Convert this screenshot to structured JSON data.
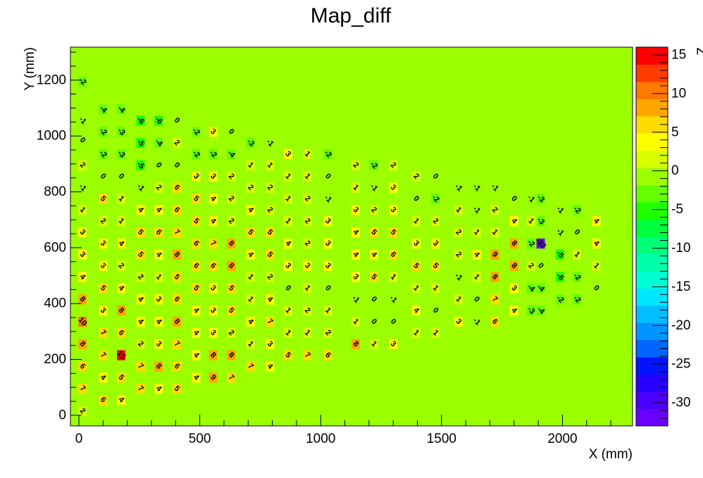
{
  "chart_data": {
    "type": "heatmap",
    "title": "Map_diff",
    "xlabel": "X (mm)",
    "ylabel": "Y (mm)",
    "zlabel": "Z",
    "xlim": [
      -35,
      2290
    ],
    "ylim": [
      -38,
      1318
    ],
    "zlim": [
      -33,
      16
    ],
    "background_value": 0,
    "x_ticks": [
      0,
      500,
      1000,
      1500,
      2000
    ],
    "y_ticks": [
      0,
      200,
      400,
      600,
      800,
      1000,
      1200
    ],
    "z_ticks": [
      15,
      10,
      5,
      0,
      -5,
      -10,
      -15,
      -20,
      -25,
      -30
    ],
    "palette": [
      "#6a00ff",
      "#4b00ff",
      "#2800ff",
      "#0014ff",
      "#0064ff",
      "#0096ff",
      "#00beff",
      "#00e6ff",
      "#00ffd2",
      "#00ffaa",
      "#00ff78",
      "#00ff3c",
      "#1eff00",
      "#64ff00",
      "#9bff00",
      "#d7ff00",
      "#ffff00",
      "#ffdc00",
      "#ffa500",
      "#ff7800",
      "#ff3c00",
      "#ff0000"
    ],
    "cell_size": [
      35,
      36
    ],
    "cells": [
      [
        15,
        1195,
        -2
      ],
      [
        100,
        1095,
        -4
      ],
      [
        175,
        1095,
        -4
      ],
      [
        255,
        1055,
        -6
      ],
      [
        330,
        1055,
        -6
      ],
      [
        405,
        1055,
        0
      ],
      [
        485,
        1015,
        -2
      ],
      [
        555,
        1015,
        3
      ],
      [
        630,
        1015,
        0
      ],
      [
        15,
        1055,
        -1
      ],
      [
        100,
        1015,
        -2
      ],
      [
        175,
        1015,
        -3
      ],
      [
        255,
        975,
        -5
      ],
      [
        330,
        975,
        -4
      ],
      [
        405,
        975,
        2
      ],
      [
        485,
        935,
        -2
      ],
      [
        555,
        935,
        -2
      ],
      [
        630,
        935,
        -4
      ],
      [
        710,
        975,
        -3
      ],
      [
        790,
        975,
        -1
      ],
      [
        865,
        935,
        3
      ],
      [
        945,
        935,
        1
      ],
      [
        1030,
        935,
        -2
      ],
      [
        15,
        985,
        0
      ],
      [
        100,
        935,
        -2
      ],
      [
        175,
        935,
        -3
      ],
      [
        255,
        895,
        -5
      ],
      [
        330,
        895,
        0
      ],
      [
        405,
        895,
        0
      ],
      [
        485,
        855,
        3
      ],
      [
        555,
        855,
        3
      ],
      [
        630,
        855,
        2
      ],
      [
        710,
        895,
        1
      ],
      [
        790,
        895,
        1
      ],
      [
        865,
        855,
        1
      ],
      [
        945,
        855,
        1
      ],
      [
        1030,
        855,
        0
      ],
      [
        1145,
        895,
        2
      ],
      [
        1220,
        895,
        -2
      ],
      [
        1300,
        895,
        2
      ],
      [
        1395,
        855,
        2
      ],
      [
        1475,
        855,
        0
      ],
      [
        15,
        895,
        2
      ],
      [
        100,
        855,
        0
      ],
      [
        175,
        855,
        0
      ],
      [
        255,
        815,
        -1
      ],
      [
        330,
        815,
        2
      ],
      [
        405,
        815,
        6
      ],
      [
        485,
        775,
        5
      ],
      [
        555,
        775,
        4
      ],
      [
        630,
        775,
        2
      ],
      [
        710,
        815,
        2
      ],
      [
        790,
        815,
        2
      ],
      [
        865,
        775,
        1
      ],
      [
        945,
        775,
        2
      ],
      [
        1030,
        775,
        -1
      ],
      [
        1145,
        815,
        1
      ],
      [
        1220,
        815,
        -1
      ],
      [
        1300,
        815,
        3
      ],
      [
        1395,
        775,
        0
      ],
      [
        1475,
        775,
        -2
      ],
      [
        1570,
        815,
        -1
      ],
      [
        1645,
        815,
        -1
      ],
      [
        1720,
        815,
        -1
      ],
      [
        15,
        815,
        -1
      ],
      [
        100,
        775,
        5
      ],
      [
        175,
        775,
        1
      ],
      [
        255,
        735,
        4
      ],
      [
        330,
        735,
        4
      ],
      [
        405,
        735,
        6
      ],
      [
        485,
        695,
        5
      ],
      [
        555,
        695,
        4
      ],
      [
        630,
        695,
        2
      ],
      [
        710,
        735,
        4
      ],
      [
        790,
        735,
        2
      ],
      [
        865,
        695,
        1
      ],
      [
        945,
        695,
        2
      ],
      [
        1030,
        695,
        3
      ],
      [
        1145,
        735,
        3
      ],
      [
        1220,
        735,
        2
      ],
      [
        1300,
        735,
        3
      ],
      [
        1395,
        695,
        1
      ],
      [
        1475,
        695,
        2
      ],
      [
        1570,
        735,
        1
      ],
      [
        1645,
        735,
        -1
      ],
      [
        1720,
        735,
        2
      ],
      [
        1800,
        775,
        0
      ],
      [
        1870,
        775,
        -1
      ],
      [
        1910,
        775,
        -3
      ],
      [
        15,
        735,
        1
      ],
      [
        100,
        695,
        2
      ],
      [
        175,
        695,
        1
      ],
      [
        255,
        655,
        5
      ],
      [
        330,
        655,
        6
      ],
      [
        405,
        655,
        7
      ],
      [
        485,
        615,
        6
      ],
      [
        555,
        615,
        7
      ],
      [
        630,
        615,
        8
      ],
      [
        710,
        655,
        5
      ],
      [
        790,
        655,
        5
      ],
      [
        865,
        615,
        4
      ],
      [
        945,
        615,
        2
      ],
      [
        1030,
        615,
        3
      ],
      [
        1145,
        655,
        4
      ],
      [
        1220,
        655,
        5
      ],
      [
        1300,
        655,
        5
      ],
      [
        1395,
        615,
        3
      ],
      [
        1475,
        615,
        3
      ],
      [
        1570,
        655,
        2
      ],
      [
        1645,
        655,
        1
      ],
      [
        1720,
        655,
        1
      ],
      [
        1800,
        695,
        4
      ],
      [
        1870,
        695,
        1
      ],
      [
        1910,
        695,
        -3
      ],
      [
        1990,
        735,
        -1
      ],
      [
        2060,
        735,
        -2
      ],
      [
        15,
        655,
        3
      ],
      [
        100,
        615,
        3
      ],
      [
        175,
        615,
        4
      ],
      [
        255,
        575,
        5
      ],
      [
        330,
        575,
        4
      ],
      [
        405,
        575,
        8
      ],
      [
        485,
        535,
        6
      ],
      [
        555,
        535,
        6
      ],
      [
        630,
        535,
        8
      ],
      [
        710,
        575,
        4
      ],
      [
        790,
        575,
        5
      ],
      [
        865,
        535,
        3
      ],
      [
        945,
        535,
        3
      ],
      [
        1030,
        535,
        3
      ],
      [
        1145,
        575,
        4
      ],
      [
        1220,
        575,
        4
      ],
      [
        1300,
        575,
        6
      ],
      [
        1395,
        535,
        5
      ],
      [
        1475,
        535,
        5
      ],
      [
        1570,
        575,
        2
      ],
      [
        1645,
        575,
        4
      ],
      [
        1720,
        575,
        9
      ],
      [
        1800,
        615,
        8
      ],
      [
        1870,
        615,
        -2
      ],
      [
        1910,
        615,
        -32
      ],
      [
        1990,
        655,
        -1
      ],
      [
        2060,
        655,
        0
      ],
      [
        2140,
        695,
        4
      ],
      [
        15,
        575,
        3
      ],
      [
        100,
        535,
        3
      ],
      [
        175,
        535,
        2
      ],
      [
        255,
        495,
        2
      ],
      [
        330,
        495,
        1
      ],
      [
        405,
        495,
        5
      ],
      [
        485,
        455,
        5
      ],
      [
        555,
        455,
        3
      ],
      [
        630,
        455,
        5
      ],
      [
        710,
        495,
        1
      ],
      [
        790,
        495,
        2
      ],
      [
        865,
        455,
        0
      ],
      [
        945,
        455,
        1
      ],
      [
        1030,
        455,
        0
      ],
      [
        1145,
        495,
        3
      ],
      [
        1220,
        495,
        5
      ],
      [
        1300,
        495,
        1
      ],
      [
        1395,
        455,
        1
      ],
      [
        1475,
        455,
        1
      ],
      [
        1570,
        495,
        -1
      ],
      [
        1645,
        495,
        1
      ],
      [
        1720,
        495,
        8
      ],
      [
        1800,
        535,
        8
      ],
      [
        1870,
        535,
        2
      ],
      [
        1910,
        535,
        0
      ],
      [
        1990,
        575,
        -5
      ],
      [
        2060,
        575,
        1
      ],
      [
        2140,
        615,
        4
      ],
      [
        15,
        495,
        4
      ],
      [
        100,
        455,
        5
      ],
      [
        175,
        455,
        4
      ],
      [
        255,
        415,
        4
      ],
      [
        330,
        415,
        3
      ],
      [
        405,
        415,
        6
      ],
      [
        485,
        375,
        4
      ],
      [
        555,
        375,
        3
      ],
      [
        630,
        375,
        5
      ],
      [
        710,
        415,
        1
      ],
      [
        790,
        415,
        4
      ],
      [
        865,
        375,
        1
      ],
      [
        945,
        375,
        2
      ],
      [
        1030,
        375,
        1
      ],
      [
        1145,
        415,
        -1
      ],
      [
        1220,
        415,
        0
      ],
      [
        1300,
        415,
        -1
      ],
      [
        1395,
        375,
        4
      ],
      [
        1475,
        375,
        0
      ],
      [
        1570,
        415,
        1
      ],
      [
        1645,
        415,
        0
      ],
      [
        1720,
        415,
        7
      ],
      [
        1800,
        455,
        3
      ],
      [
        1870,
        455,
        -4
      ],
      [
        1910,
        455,
        -4
      ],
      [
        1990,
        495,
        -6
      ],
      [
        2060,
        495,
        -2
      ],
      [
        2140,
        535,
        1
      ],
      [
        15,
        415,
        8
      ],
      [
        100,
        375,
        3
      ],
      [
        175,
        375,
        8
      ],
      [
        255,
        335,
        4
      ],
      [
        330,
        335,
        4
      ],
      [
        405,
        335,
        8
      ],
      [
        485,
        295,
        4
      ],
      [
        555,
        295,
        3
      ],
      [
        630,
        295,
        2
      ],
      [
        710,
        335,
        4
      ],
      [
        790,
        335,
        7
      ],
      [
        865,
        295,
        1
      ],
      [
        945,
        295,
        1
      ],
      [
        1030,
        295,
        2
      ],
      [
        1145,
        335,
        1
      ],
      [
        1220,
        335,
        0
      ],
      [
        1300,
        335,
        0
      ],
      [
        1395,
        295,
        1
      ],
      [
        1475,
        295,
        1
      ],
      [
        1570,
        335,
        3
      ],
      [
        1645,
        335,
        -1
      ],
      [
        1720,
        335,
        6
      ],
      [
        1800,
        375,
        4
      ],
      [
        1870,
        375,
        -3
      ],
      [
        1910,
        375,
        -4
      ],
      [
        1990,
        415,
        -2
      ],
      [
        2060,
        415,
        -2
      ],
      [
        2140,
        455,
        0
      ],
      [
        15,
        335,
        10
      ],
      [
        100,
        295,
        7
      ],
      [
        175,
        295,
        6
      ],
      [
        255,
        255,
        2
      ],
      [
        330,
        255,
        3
      ],
      [
        405,
        255,
        7
      ],
      [
        485,
        215,
        4
      ],
      [
        555,
        215,
        8
      ],
      [
        630,
        215,
        8
      ],
      [
        710,
        255,
        1
      ],
      [
        790,
        255,
        3
      ],
      [
        865,
        215,
        5
      ],
      [
        945,
        215,
        7
      ],
      [
        1030,
        215,
        6
      ],
      [
        1145,
        255,
        8
      ],
      [
        1220,
        255,
        1
      ],
      [
        1300,
        255,
        3
      ],
      [
        15,
        255,
        8
      ],
      [
        100,
        215,
        7
      ],
      [
        175,
        215,
        15
      ],
      [
        255,
        175,
        7
      ],
      [
        330,
        175,
        8
      ],
      [
        405,
        175,
        6
      ],
      [
        485,
        135,
        4
      ],
      [
        555,
        135,
        9
      ],
      [
        630,
        135,
        7
      ],
      [
        710,
        175,
        7
      ],
      [
        790,
        175,
        4
      ],
      [
        15,
        175,
        6
      ],
      [
        100,
        135,
        4
      ],
      [
        175,
        135,
        5
      ],
      [
        255,
        95,
        7
      ],
      [
        330,
        95,
        4
      ],
      [
        405,
        95,
        5
      ],
      [
        15,
        95,
        7
      ],
      [
        100,
        55,
        6
      ],
      [
        175,
        55,
        4
      ],
      [
        15,
        15,
        2
      ]
    ]
  }
}
